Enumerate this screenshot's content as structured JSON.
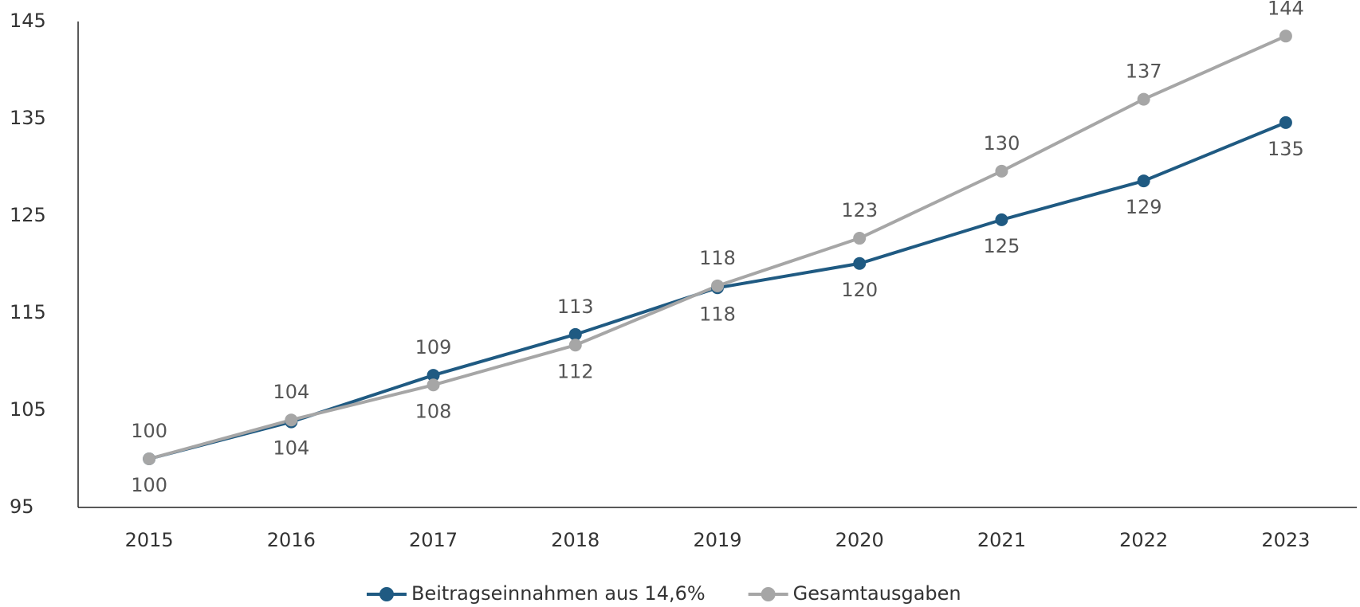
{
  "chart_data": {
    "type": "line",
    "categories": [
      "2015",
      "2016",
      "2017",
      "2018",
      "2019",
      "2020",
      "2021",
      "2022",
      "2023"
    ],
    "series": [
      {
        "name": "Beitragseinnahmen aus 14,6%",
        "color": "#1f5a82",
        "values": [
          100,
          103.8,
          108.6,
          112.8,
          117.6,
          120.1,
          124.6,
          128.6,
          134.6
        ],
        "value_labels": [
          "100",
          "104",
          "109",
          "113",
          "118",
          "120",
          "125",
          "129",
          "135"
        ]
      },
      {
        "name": "Gesamtausgaben",
        "color": "#a6a6a6",
        "values": [
          100,
          104.0,
          107.6,
          111.7,
          117.8,
          122.7,
          129.6,
          137.0,
          143.5
        ],
        "value_labels": [
          "100",
          "104",
          "108",
          "112",
          "118",
          "123",
          "130",
          "137",
          "144"
        ]
      }
    ],
    "ylim": [
      95,
      145
    ],
    "yticks": [
      95,
      105,
      115,
      125,
      135,
      145
    ],
    "grid": false,
    "legend": "bottom"
  }
}
